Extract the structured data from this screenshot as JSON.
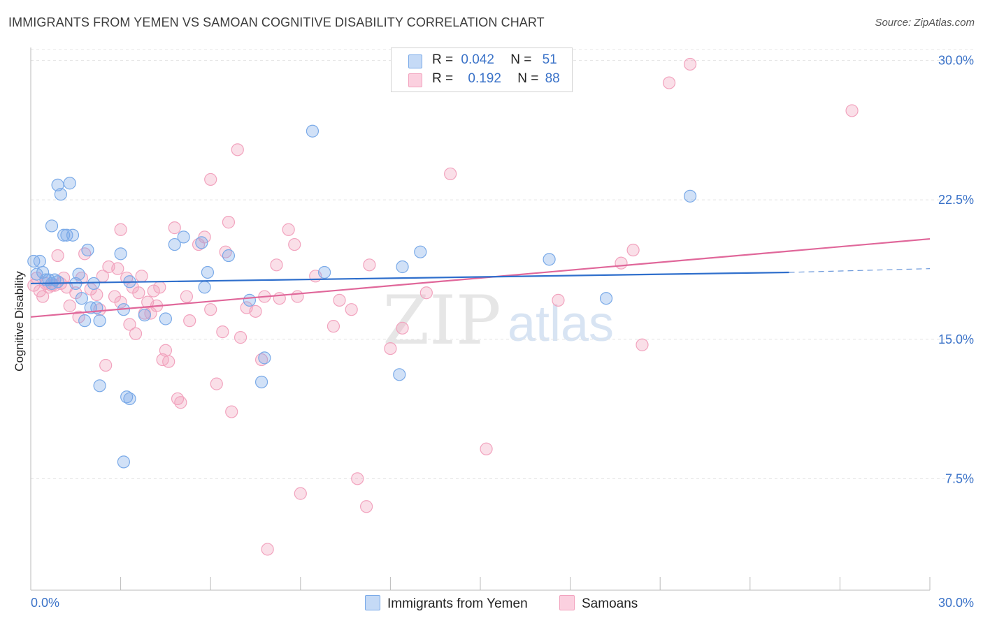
{
  "title": "IMMIGRANTS FROM YEMEN VS SAMOAN COGNITIVE DISABILITY CORRELATION CHART",
  "source": "Source: ZipAtlas.com",
  "watermark": {
    "zip": "ZIP",
    "atlas": "atlas"
  },
  "legend": {
    "rows": [
      {
        "r_label": "R =",
        "r_value": "0.042",
        "n_label": "N =",
        "n_value": "51"
      },
      {
        "r_label": "R =",
        "r_value": "0.192",
        "n_label": "N =",
        "n_value": "88"
      }
    ]
  },
  "chart_data": {
    "type": "scatter",
    "title": "IMMIGRANTS FROM YEMEN VS SAMOAN COGNITIVE DISABILITY CORRELATION CHART",
    "xlabel": "",
    "ylabel": "Cognitive Disability",
    "xlim": [
      0,
      30
    ],
    "ylim": [
      1.5,
      31
    ],
    "x_tick_labels": [
      "0.0%",
      "30.0%"
    ],
    "y_ticks": [
      7.5,
      15.0,
      22.5,
      30.0
    ],
    "y_tick_labels": [
      "7.5%",
      "15.0%",
      "22.5%",
      "30.0%"
    ],
    "grid": "horizontal dashed",
    "legend_position": "top-center",
    "colors": {
      "yemen": "#7aaae8",
      "yemen_line": "#2f6fcc",
      "samoan": "#f2a3be",
      "samoan_line": "#e0679a",
      "tick_label": "#3a72c8"
    },
    "series": [
      {
        "name": "Immigrants from Yemen",
        "r": 0.042,
        "n": 51,
        "trend": {
          "x": [
            0,
            25.3
          ],
          "y": [
            18.0,
            18.6
          ],
          "dashed_to_x": 30,
          "dashed_to_y": 18.8
        },
        "points": [
          [
            0.1,
            19.2
          ],
          [
            0.2,
            18.5
          ],
          [
            0.3,
            19.2
          ],
          [
            0.4,
            18.6
          ],
          [
            0.5,
            18.2
          ],
          [
            0.6,
            18.2
          ],
          [
            0.7,
            18.0
          ],
          [
            0.8,
            18.2
          ],
          [
            0.9,
            18.1
          ],
          [
            0.7,
            21.1
          ],
          [
            0.9,
            23.3
          ],
          [
            1.0,
            22.8
          ],
          [
            1.3,
            23.4
          ],
          [
            1.1,
            20.6
          ],
          [
            1.2,
            20.6
          ],
          [
            1.4,
            20.6
          ],
          [
            1.5,
            18.0
          ],
          [
            1.6,
            18.5
          ],
          [
            1.7,
            17.2
          ],
          [
            1.8,
            16.0
          ],
          [
            1.9,
            19.8
          ],
          [
            2.0,
            16.7
          ],
          [
            2.1,
            18.0
          ],
          [
            2.2,
            16.7
          ],
          [
            2.3,
            16.0
          ],
          [
            2.3,
            12.5
          ],
          [
            3.0,
            19.6
          ],
          [
            3.1,
            16.6
          ],
          [
            3.3,
            18.1
          ],
          [
            3.2,
            11.9
          ],
          [
            3.3,
            11.8
          ],
          [
            3.1,
            8.4
          ],
          [
            3.8,
            16.3
          ],
          [
            4.5,
            16.1
          ],
          [
            4.8,
            20.1
          ],
          [
            5.1,
            20.5
          ],
          [
            5.7,
            20.2
          ],
          [
            5.8,
            17.8
          ],
          [
            5.9,
            18.6
          ],
          [
            6.6,
            19.5
          ],
          [
            7.3,
            17.1
          ],
          [
            7.8,
            14.0
          ],
          [
            7.7,
            12.7
          ],
          [
            9.4,
            26.2
          ],
          [
            9.8,
            18.6
          ],
          [
            12.3,
            13.1
          ],
          [
            12.4,
            18.9
          ],
          [
            13.0,
            19.7
          ],
          [
            17.3,
            19.3
          ],
          [
            19.2,
            17.2
          ],
          [
            22.0,
            22.7
          ]
        ]
      },
      {
        "name": "Samoans",
        "r": 0.192,
        "n": 88,
        "trend": {
          "x": [
            0,
            30
          ],
          "y": [
            16.2,
            20.4
          ]
        },
        "points": [
          [
            0.1,
            17.9
          ],
          [
            0.2,
            18.3
          ],
          [
            0.3,
            17.6
          ],
          [
            0.4,
            17.3
          ],
          [
            0.5,
            18.0
          ],
          [
            0.6,
            17.8
          ],
          [
            0.7,
            17.9
          ],
          [
            0.9,
            19.5
          ],
          [
            1.0,
            18.0
          ],
          [
            1.1,
            18.3
          ],
          [
            1.2,
            17.8
          ],
          [
            1.3,
            16.8
          ],
          [
            1.5,
            17.5
          ],
          [
            1.6,
            16.2
          ],
          [
            1.7,
            18.3
          ],
          [
            1.8,
            19.6
          ],
          [
            2.0,
            17.7
          ],
          [
            2.2,
            17.4
          ],
          [
            2.3,
            16.6
          ],
          [
            2.4,
            18.4
          ],
          [
            2.5,
            13.6
          ],
          [
            2.6,
            18.9
          ],
          [
            2.8,
            17.3
          ],
          [
            2.9,
            18.8
          ],
          [
            3.0,
            17.0
          ],
          [
            3.0,
            20.9
          ],
          [
            3.2,
            18.3
          ],
          [
            3.3,
            15.8
          ],
          [
            3.4,
            17.8
          ],
          [
            3.5,
            15.3
          ],
          [
            3.6,
            17.5
          ],
          [
            3.7,
            18.4
          ],
          [
            3.8,
            16.4
          ],
          [
            3.9,
            17.0
          ],
          [
            4.0,
            16.4
          ],
          [
            4.1,
            17.6
          ],
          [
            4.2,
            16.8
          ],
          [
            4.3,
            17.8
          ],
          [
            4.4,
            13.9
          ],
          [
            4.5,
            14.4
          ],
          [
            4.6,
            13.8
          ],
          [
            4.8,
            21.0
          ],
          [
            4.9,
            11.8
          ],
          [
            5.0,
            11.6
          ],
          [
            5.2,
            17.3
          ],
          [
            5.3,
            16.0
          ],
          [
            5.6,
            20.1
          ],
          [
            5.8,
            20.5
          ],
          [
            6.0,
            23.6
          ],
          [
            6.0,
            16.6
          ],
          [
            6.2,
            12.6
          ],
          [
            6.4,
            15.4
          ],
          [
            6.5,
            19.7
          ],
          [
            6.6,
            21.3
          ],
          [
            6.7,
            11.1
          ],
          [
            6.9,
            25.2
          ],
          [
            7.0,
            15.1
          ],
          [
            7.2,
            16.7
          ],
          [
            7.5,
            16.5
          ],
          [
            7.7,
            13.9
          ],
          [
            7.8,
            17.3
          ],
          [
            7.9,
            3.7
          ],
          [
            8.2,
            19.0
          ],
          [
            8.3,
            17.2
          ],
          [
            8.6,
            20.9
          ],
          [
            8.8,
            20.1
          ],
          [
            8.9,
            17.3
          ],
          [
            9.0,
            6.7
          ],
          [
            9.5,
            18.4
          ],
          [
            10.1,
            15.7
          ],
          [
            10.3,
            17.1
          ],
          [
            10.7,
            16.6
          ],
          [
            10.9,
            7.5
          ],
          [
            11.2,
            6.0
          ],
          [
            11.3,
            19.0
          ],
          [
            12.0,
            14.5
          ],
          [
            12.4,
            15.6
          ],
          [
            13.2,
            17.5
          ],
          [
            14.0,
            23.9
          ],
          [
            15.2,
            9.1
          ],
          [
            17.6,
            17.1
          ],
          [
            19.7,
            19.1
          ],
          [
            20.1,
            19.8
          ],
          [
            20.4,
            14.7
          ],
          [
            21.3,
            28.8
          ],
          [
            22.0,
            29.8
          ],
          [
            27.4,
            27.3
          ],
          [
            0.8,
            17.9
          ]
        ]
      }
    ]
  }
}
